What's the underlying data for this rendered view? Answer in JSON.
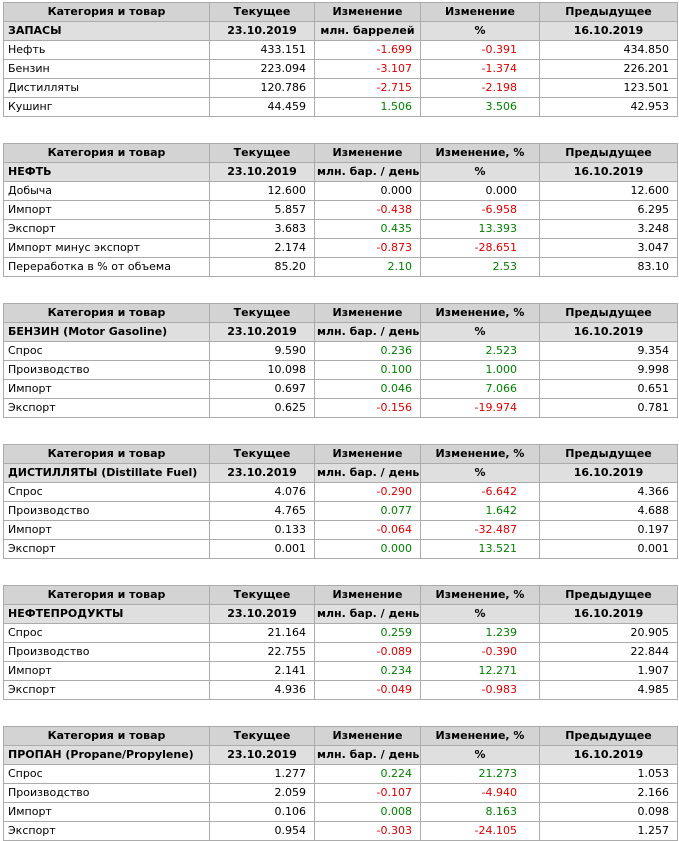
{
  "colors": {
    "positive": "#008000",
    "negative": "#dd0000",
    "neutral": "#000000",
    "header_bg": "#d3d3d3",
    "subheader_bg": "#dfdfdf",
    "border": "#ababab"
  },
  "tables": [
    {
      "headers": [
        "Категория и товар",
        "Текущее",
        "Изменение",
        "Изменение",
        "Предыдущее"
      ],
      "subheader": {
        "title": "ЗАПАСЫ",
        "current_date": "23.10.2019",
        "change_unit": "млн. баррелей",
        "change_pct_unit": "%",
        "previous_date": "16.10.2019"
      },
      "rows": [
        {
          "category": "Нефть",
          "current": "433.151",
          "change": "-1.699",
          "change_trend": "down",
          "change_pct": "-0.391",
          "change_pct_trend": "down",
          "previous": "434.850"
        },
        {
          "category": "Бензин",
          "current": "223.094",
          "change": "-3.107",
          "change_trend": "down",
          "change_pct": "-1.374",
          "change_pct_trend": "down",
          "previous": "226.201"
        },
        {
          "category": "Дистилляты",
          "current": "120.786",
          "change": "-2.715",
          "change_trend": "down",
          "change_pct": "-2.198",
          "change_pct_trend": "down",
          "previous": "123.501"
        },
        {
          "category": "Кушинг",
          "current": "44.459",
          "change": "1.506",
          "change_trend": "up",
          "change_pct": "3.506",
          "change_pct_trend": "up",
          "previous": "42.953"
        }
      ]
    },
    {
      "headers": [
        "Категория и товар",
        "Текущее",
        "Изменение",
        "Изменение, %",
        "Предыдущее"
      ],
      "subheader": {
        "title": "НЕФТЬ",
        "current_date": "23.10.2019",
        "change_unit": "млн. бар. / день",
        "change_pct_unit": "%",
        "previous_date": "16.10.2019"
      },
      "rows": [
        {
          "category": "Добыча",
          "current": "12.600",
          "change": "0.000",
          "change_trend": "flat",
          "change_pct": "0.000",
          "change_pct_trend": "flat",
          "previous": "12.600"
        },
        {
          "category": "Импорт",
          "current": "5.857",
          "change": "-0.438",
          "change_trend": "down",
          "change_pct": "-6.958",
          "change_pct_trend": "down",
          "previous": "6.295"
        },
        {
          "category": "Экспорт",
          "current": "3.683",
          "change": "0.435",
          "change_trend": "up",
          "change_pct": "13.393",
          "change_pct_trend": "up",
          "previous": "3.248"
        },
        {
          "category": "Импорт минус экспорт",
          "current": "2.174",
          "change": "-0.873",
          "change_trend": "down",
          "change_pct": "-28.651",
          "change_pct_trend": "down",
          "previous": "3.047"
        },
        {
          "category": "Переработка в % от объема",
          "current": "85.20",
          "change": "2.10",
          "change_trend": "up",
          "change_pct": "2.53",
          "change_pct_trend": "up",
          "previous": "83.10"
        }
      ]
    },
    {
      "headers": [
        "Категория и товар",
        "Текущее",
        "Изменение",
        "Изменение, %",
        "Предыдущее"
      ],
      "subheader": {
        "title": "БЕНЗИН (Motor Gasoline)",
        "current_date": "23.10.2019",
        "change_unit": "млн. бар. / день",
        "change_pct_unit": "%",
        "previous_date": "16.10.2019"
      },
      "rows": [
        {
          "category": "Спрос",
          "current": "9.590",
          "change": "0.236",
          "change_trend": "up",
          "change_pct": "2.523",
          "change_pct_trend": "up",
          "previous": "9.354"
        },
        {
          "category": "Производство",
          "current": "10.098",
          "change": "0.100",
          "change_trend": "up",
          "change_pct": "1.000",
          "change_pct_trend": "up",
          "previous": "9.998"
        },
        {
          "category": "Импорт",
          "current": "0.697",
          "change": "0.046",
          "change_trend": "up",
          "change_pct": "7.066",
          "change_pct_trend": "up",
          "previous": "0.651"
        },
        {
          "category": "Экспорт",
          "current": "0.625",
          "change": "-0.156",
          "change_trend": "down",
          "change_pct": "-19.974",
          "change_pct_trend": "down",
          "previous": "0.781"
        }
      ]
    },
    {
      "headers": [
        "Категория и товар",
        "Текущее",
        "Изменение",
        "Изменение, %",
        "Предыдущее"
      ],
      "subheader": {
        "title": "ДИСТИЛЛЯТЫ (Distillate Fuel)",
        "current_date": "23.10.2019",
        "change_unit": "млн. бар. / день",
        "change_pct_unit": "%",
        "previous_date": "16.10.2019"
      },
      "rows": [
        {
          "category": "Спрос",
          "current": "4.076",
          "change": "-0.290",
          "change_trend": "down",
          "change_pct": "-6.642",
          "change_pct_trend": "down",
          "previous": "4.366"
        },
        {
          "category": "Производство",
          "current": "4.765",
          "change": "0.077",
          "change_trend": "up",
          "change_pct": "1.642",
          "change_pct_trend": "up",
          "previous": "4.688"
        },
        {
          "category": "Импорт",
          "current": "0.133",
          "change": "-0.064",
          "change_trend": "down",
          "change_pct": "-32.487",
          "change_pct_trend": "down",
          "previous": "0.197"
        },
        {
          "category": "Экспорт",
          "current": "0.001",
          "change": "0.000",
          "change_trend": "up",
          "change_pct": "13.521",
          "change_pct_trend": "up",
          "previous": "0.001"
        }
      ]
    },
    {
      "headers": [
        "Категория и товар",
        "Текущее",
        "Изменение",
        "Изменение, %",
        "Предыдущее"
      ],
      "subheader": {
        "title": "НЕФТЕПРОДУКТЫ",
        "current_date": "23.10.2019",
        "change_unit": "млн. бар. / день",
        "change_pct_unit": "%",
        "previous_date": "16.10.2019"
      },
      "rows": [
        {
          "category": "Спрос",
          "current": "21.164",
          "change": "0.259",
          "change_trend": "up",
          "change_pct": "1.239",
          "change_pct_trend": "up",
          "previous": "20.905"
        },
        {
          "category": "Производство",
          "current": "22.755",
          "change": "-0.089",
          "change_trend": "down",
          "change_pct": "-0.390",
          "change_pct_trend": "down",
          "previous": "22.844"
        },
        {
          "category": "Импорт",
          "current": "2.141",
          "change": "0.234",
          "change_trend": "up",
          "change_pct": "12.271",
          "change_pct_trend": "up",
          "previous": "1.907"
        },
        {
          "category": "Экспорт",
          "current": "4.936",
          "change": "-0.049",
          "change_trend": "down",
          "change_pct": "-0.983",
          "change_pct_trend": "down",
          "previous": "4.985"
        }
      ]
    },
    {
      "headers": [
        "Категория и товар",
        "Текущее",
        "Изменение",
        "Изменение, %",
        "Предыдущее"
      ],
      "subheader": {
        "title": "ПРОПАН (Propane/Propylene)",
        "current_date": "23.10.2019",
        "change_unit": "млн. бар. / день",
        "change_pct_unit": "%",
        "previous_date": "16.10.2019"
      },
      "rows": [
        {
          "category": "Спрос",
          "current": "1.277",
          "change": "0.224",
          "change_trend": "up",
          "change_pct": "21.273",
          "change_pct_trend": "up",
          "previous": "1.053"
        },
        {
          "category": "Производство",
          "current": "2.059",
          "change": "-0.107",
          "change_trend": "down",
          "change_pct": "-4.940",
          "change_pct_trend": "down",
          "previous": "2.166"
        },
        {
          "category": "Импорт",
          "current": "0.106",
          "change": "0.008",
          "change_trend": "up",
          "change_pct": "8.163",
          "change_pct_trend": "up",
          "previous": "0.098"
        },
        {
          "category": "Экспорт",
          "current": "0.954",
          "change": "-0.303",
          "change_trend": "down",
          "change_pct": "-24.105",
          "change_pct_trend": "down",
          "previous": "1.257"
        }
      ]
    }
  ]
}
